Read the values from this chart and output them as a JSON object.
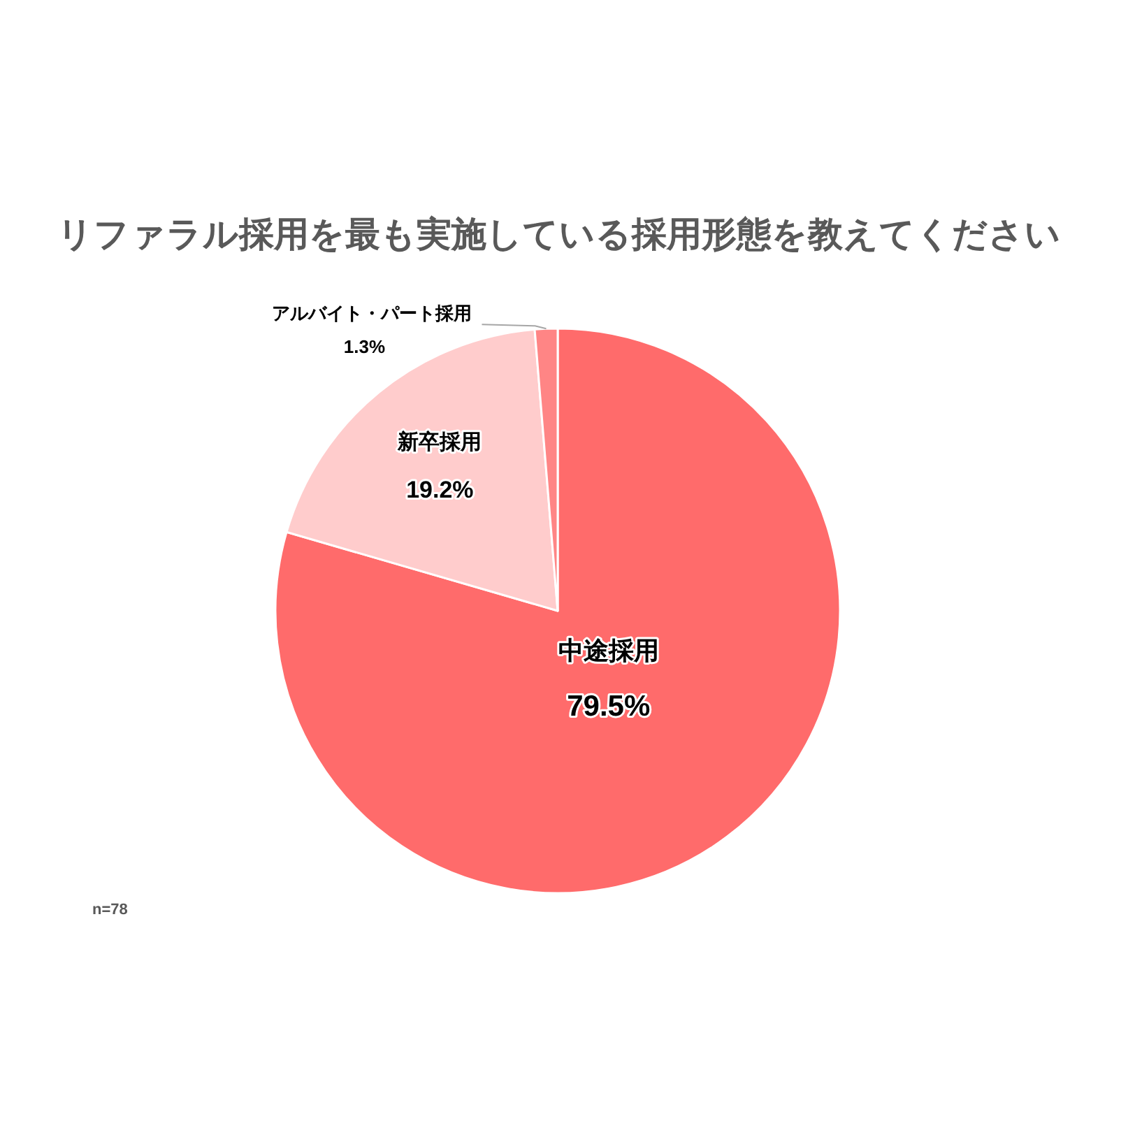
{
  "chart_data": {
    "type": "pie",
    "title": "リファラル採用を最も実施している採用形態を教えてください",
    "categories": [
      "中途採用",
      "新卒採用",
      "アルバイト・パート採用"
    ],
    "values": [
      79.5,
      19.2,
      1.3
    ],
    "value_labels": [
      "79.5%",
      "19.2%",
      "1.3%"
    ],
    "colors": [
      "#ff6b6b",
      "#ffcccc",
      "#ff8585"
    ],
    "annotations": [
      "n=78"
    ]
  }
}
